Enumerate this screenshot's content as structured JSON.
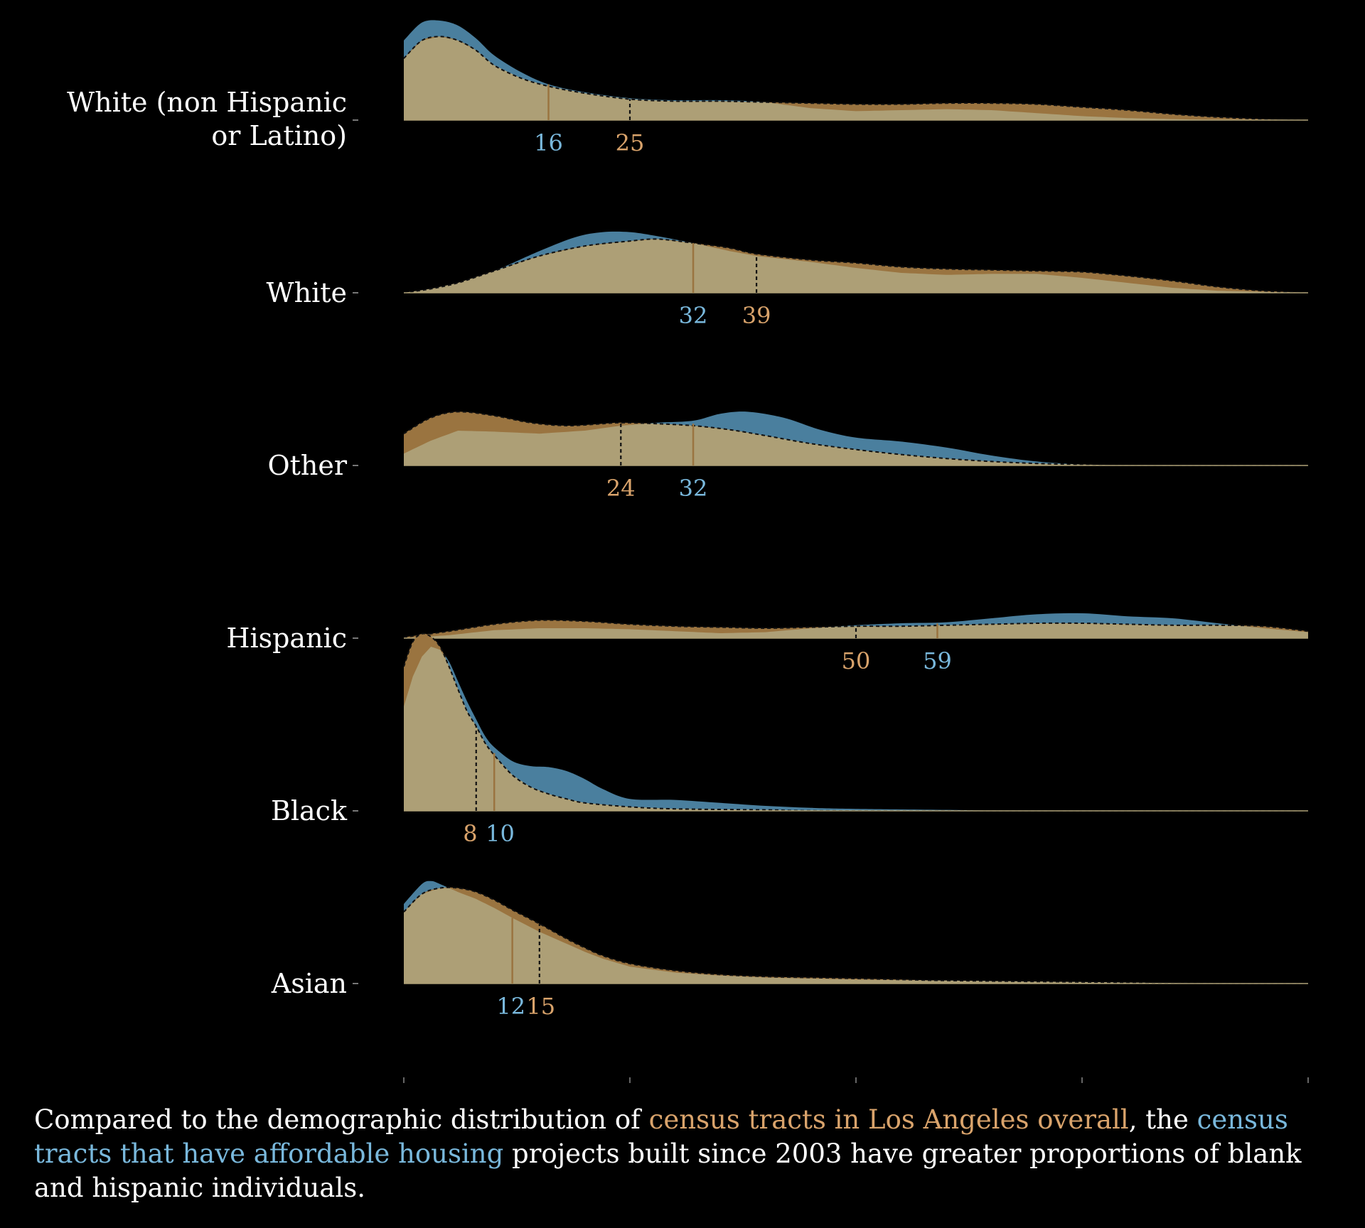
{
  "chart_data": {
    "type": "ridgeline-density",
    "xlim": [
      0,
      100
    ],
    "x_ticks": [
      0,
      25,
      50,
      75,
      100
    ],
    "series": [
      {
        "name": "census tracts in Los Angeles overall",
        "color": "#9a7440",
        "median_line": "dashed",
        "label_color": "#d9a36b"
      },
      {
        "name": "census tracts that have affordable housing",
        "color": "#4a7f9e",
        "median_line": "solid",
        "label_color": "#79b8dc"
      }
    ],
    "rows": [
      {
        "label": "White (non Hispanic or Latino)",
        "label_lines": [
          "White (non Hispanic",
          "or Latino)"
        ],
        "overall_median": 25,
        "affordable_median": 16,
        "overall_density": [
          [
            0,
            0.62
          ],
          [
            2,
            0.8
          ],
          [
            4,
            0.84
          ],
          [
            6,
            0.8
          ],
          [
            8,
            0.7
          ],
          [
            10,
            0.55
          ],
          [
            13,
            0.42
          ],
          [
            16,
            0.34
          ],
          [
            20,
            0.27
          ],
          [
            25,
            0.21
          ],
          [
            30,
            0.19
          ],
          [
            35,
            0.19
          ],
          [
            40,
            0.18
          ],
          [
            45,
            0.17
          ],
          [
            50,
            0.16
          ],
          [
            55,
            0.16
          ],
          [
            60,
            0.17
          ],
          [
            65,
            0.17
          ],
          [
            70,
            0.16
          ],
          [
            75,
            0.13
          ],
          [
            80,
            0.1
          ],
          [
            85,
            0.06
          ],
          [
            90,
            0.03
          ],
          [
            95,
            0.01
          ],
          [
            100,
            0.0
          ]
        ],
        "affordable_density": [
          [
            0,
            0.8
          ],
          [
            2,
            0.98
          ],
          [
            4,
            1.0
          ],
          [
            6,
            0.95
          ],
          [
            8,
            0.82
          ],
          [
            10,
            0.65
          ],
          [
            13,
            0.48
          ],
          [
            16,
            0.36
          ],
          [
            20,
            0.28
          ],
          [
            25,
            0.22
          ],
          [
            30,
            0.2
          ],
          [
            35,
            0.2
          ],
          [
            40,
            0.18
          ],
          [
            45,
            0.12
          ],
          [
            50,
            0.09
          ],
          [
            55,
            0.1
          ],
          [
            60,
            0.11
          ],
          [
            65,
            0.1
          ],
          [
            70,
            0.07
          ],
          [
            75,
            0.04
          ],
          [
            80,
            0.02
          ],
          [
            85,
            0.01
          ],
          [
            90,
            0.0
          ],
          [
            100,
            0.0
          ]
        ]
      },
      {
        "label": "White",
        "label_lines": [
          "White"
        ],
        "overall_median": 39,
        "affordable_median": 32,
        "overall_density": [
          [
            0,
            0.0
          ],
          [
            3,
            0.04
          ],
          [
            6,
            0.1
          ],
          [
            10,
            0.22
          ],
          [
            15,
            0.37
          ],
          [
            20,
            0.47
          ],
          [
            25,
            0.52
          ],
          [
            28,
            0.54
          ],
          [
            32,
            0.5
          ],
          [
            36,
            0.45
          ],
          [
            39,
            0.39
          ],
          [
            45,
            0.33
          ],
          [
            50,
            0.3
          ],
          [
            55,
            0.26
          ],
          [
            60,
            0.24
          ],
          [
            65,
            0.23
          ],
          [
            70,
            0.22
          ],
          [
            75,
            0.21
          ],
          [
            80,
            0.17
          ],
          [
            85,
            0.12
          ],
          [
            90,
            0.06
          ],
          [
            95,
            0.02
          ],
          [
            100,
            0.0
          ]
        ],
        "affordable_density": [
          [
            0,
            0.0
          ],
          [
            3,
            0.04
          ],
          [
            6,
            0.1
          ],
          [
            10,
            0.22
          ],
          [
            15,
            0.42
          ],
          [
            19,
            0.56
          ],
          [
            22,
            0.61
          ],
          [
            25,
            0.61
          ],
          [
            28,
            0.57
          ],
          [
            32,
            0.5
          ],
          [
            36,
            0.42
          ],
          [
            39,
            0.37
          ],
          [
            45,
            0.31
          ],
          [
            50,
            0.25
          ],
          [
            55,
            0.2
          ],
          [
            60,
            0.18
          ],
          [
            65,
            0.19
          ],
          [
            70,
            0.19
          ],
          [
            75,
            0.15
          ],
          [
            80,
            0.1
          ],
          [
            85,
            0.05
          ],
          [
            90,
            0.02
          ],
          [
            95,
            0.01
          ],
          [
            100,
            0.0
          ]
        ]
      },
      {
        "label": "Other",
        "label_lines": [
          "Other"
        ],
        "overall_median": 24,
        "affordable_median": 32,
        "overall_density": [
          [
            0,
            0.32
          ],
          [
            3,
            0.48
          ],
          [
            6,
            0.54
          ],
          [
            10,
            0.5
          ],
          [
            14,
            0.43
          ],
          [
            18,
            0.4
          ],
          [
            22,
            0.42
          ],
          [
            24,
            0.43
          ],
          [
            28,
            0.42
          ],
          [
            32,
            0.4
          ],
          [
            36,
            0.36
          ],
          [
            40,
            0.3
          ],
          [
            45,
            0.22
          ],
          [
            50,
            0.16
          ],
          [
            55,
            0.11
          ],
          [
            60,
            0.07
          ],
          [
            65,
            0.04
          ],
          [
            70,
            0.02
          ],
          [
            75,
            0.01
          ],
          [
            80,
            0.0
          ],
          [
            100,
            0.0
          ]
        ],
        "affordable_density": [
          [
            0,
            0.12
          ],
          [
            3,
            0.25
          ],
          [
            6,
            0.35
          ],
          [
            10,
            0.34
          ],
          [
            15,
            0.32
          ],
          [
            20,
            0.35
          ],
          [
            24,
            0.4
          ],
          [
            28,
            0.43
          ],
          [
            32,
            0.45
          ],
          [
            35,
            0.52
          ],
          [
            38,
            0.54
          ],
          [
            42,
            0.48
          ],
          [
            46,
            0.36
          ],
          [
            50,
            0.28
          ],
          [
            55,
            0.24
          ],
          [
            60,
            0.18
          ],
          [
            65,
            0.1
          ],
          [
            70,
            0.04
          ],
          [
            75,
            0.01
          ],
          [
            80,
            0.0
          ],
          [
            100,
            0.0
          ]
        ]
      },
      {
        "label": "Hispanic",
        "label_lines": [
          "Hispanic"
        ],
        "overall_median": 50,
        "affordable_median": 59,
        "overall_density": [
          [
            0,
            0.01
          ],
          [
            5,
            0.07
          ],
          [
            10,
            0.14
          ],
          [
            15,
            0.18
          ],
          [
            20,
            0.17
          ],
          [
            25,
            0.14
          ],
          [
            30,
            0.12
          ],
          [
            35,
            0.11
          ],
          [
            40,
            0.1
          ],
          [
            45,
            0.11
          ],
          [
            50,
            0.12
          ],
          [
            55,
            0.12
          ],
          [
            60,
            0.13
          ],
          [
            65,
            0.14
          ],
          [
            70,
            0.15
          ],
          [
            75,
            0.15
          ],
          [
            80,
            0.14
          ],
          [
            85,
            0.13
          ],
          [
            90,
            0.13
          ],
          [
            95,
            0.12
          ],
          [
            100,
            0.07
          ]
        ],
        "affordable_density": [
          [
            0,
            0.0
          ],
          [
            5,
            0.03
          ],
          [
            10,
            0.08
          ],
          [
            15,
            0.1
          ],
          [
            20,
            0.1
          ],
          [
            25,
            0.09
          ],
          [
            30,
            0.07
          ],
          [
            35,
            0.05
          ],
          [
            40,
            0.06
          ],
          [
            45,
            0.1
          ],
          [
            50,
            0.13
          ],
          [
            55,
            0.15
          ],
          [
            60,
            0.16
          ],
          [
            65,
            0.2
          ],
          [
            70,
            0.24
          ],
          [
            75,
            0.25
          ],
          [
            80,
            0.22
          ],
          [
            85,
            0.2
          ],
          [
            90,
            0.15
          ],
          [
            95,
            0.1
          ],
          [
            100,
            0.06
          ]
        ]
      },
      {
        "label": "Black",
        "label_lines": [
          "Black"
        ],
        "overall_median": 8,
        "affordable_median": 10,
        "overall_density": [
          [
            0,
            1.45
          ],
          [
            1,
            1.7
          ],
          [
            2,
            1.78
          ],
          [
            3,
            1.75
          ],
          [
            4,
            1.65
          ],
          [
            5,
            1.45
          ],
          [
            6,
            1.22
          ],
          [
            7,
            1.0
          ],
          [
            8,
            0.85
          ],
          [
            9,
            0.68
          ],
          [
            10,
            0.56
          ],
          [
            12,
            0.36
          ],
          [
            14,
            0.24
          ],
          [
            16,
            0.17
          ],
          [
            18,
            0.12
          ],
          [
            20,
            0.08
          ],
          [
            25,
            0.04
          ],
          [
            30,
            0.02
          ],
          [
            40,
            0.01
          ],
          [
            50,
            0.0
          ],
          [
            100,
            0.0
          ]
        ],
        "affordable_density": [
          [
            0,
            1.05
          ],
          [
            1,
            1.35
          ],
          [
            2,
            1.55
          ],
          [
            3,
            1.65
          ],
          [
            4,
            1.62
          ],
          [
            5,
            1.5
          ],
          [
            6,
            1.3
          ],
          [
            7,
            1.1
          ],
          [
            8,
            0.92
          ],
          [
            9,
            0.75
          ],
          [
            10,
            0.64
          ],
          [
            12,
            0.5
          ],
          [
            14,
            0.45
          ],
          [
            16,
            0.44
          ],
          [
            18,
            0.4
          ],
          [
            20,
            0.32
          ],
          [
            22,
            0.22
          ],
          [
            25,
            0.12
          ],
          [
            30,
            0.11
          ],
          [
            35,
            0.08
          ],
          [
            40,
            0.05
          ],
          [
            45,
            0.03
          ],
          [
            50,
            0.02
          ],
          [
            60,
            0.01
          ],
          [
            70,
            0.0
          ],
          [
            100,
            0.0
          ]
        ]
      },
      {
        "label": "Asian",
        "label_lines": [
          "Asian"
        ],
        "overall_median": 15,
        "affordable_median": 12,
        "overall_density": [
          [
            0,
            0.72
          ],
          [
            2,
            0.9
          ],
          [
            4,
            0.96
          ],
          [
            6,
            0.96
          ],
          [
            8,
            0.92
          ],
          [
            10,
            0.84
          ],
          [
            12,
            0.74
          ],
          [
            15,
            0.6
          ],
          [
            18,
            0.45
          ],
          [
            20,
            0.36
          ],
          [
            22,
            0.28
          ],
          [
            25,
            0.2
          ],
          [
            30,
            0.13
          ],
          [
            35,
            0.09
          ],
          [
            40,
            0.07
          ],
          [
            45,
            0.06
          ],
          [
            50,
            0.05
          ],
          [
            55,
            0.04
          ],
          [
            60,
            0.03
          ],
          [
            70,
            0.02
          ],
          [
            80,
            0.01
          ],
          [
            90,
            0.0
          ],
          [
            100,
            0.0
          ]
        ],
        "affordable_density": [
          [
            0,
            0.8
          ],
          [
            2,
            1.0
          ],
          [
            3,
            1.03
          ],
          [
            4,
            1.0
          ],
          [
            6,
            0.92
          ],
          [
            8,
            0.85
          ],
          [
            10,
            0.76
          ],
          [
            12,
            0.66
          ],
          [
            15,
            0.52
          ],
          [
            18,
            0.4
          ],
          [
            20,
            0.32
          ],
          [
            22,
            0.25
          ],
          [
            25,
            0.17
          ],
          [
            30,
            0.11
          ],
          [
            35,
            0.08
          ],
          [
            40,
            0.06
          ],
          [
            45,
            0.05
          ],
          [
            50,
            0.04
          ],
          [
            60,
            0.03
          ],
          [
            70,
            0.02
          ],
          [
            80,
            0.01
          ],
          [
            90,
            0.0
          ],
          [
            100,
            0.0
          ]
        ]
      }
    ]
  },
  "caption": {
    "prefix": "Compared to the demographic distribution of ",
    "overall_link": "census tracts in Los Angeles overall",
    "middle": ", the ",
    "affordable_link": "census tracts that have affordable housing",
    "suffix": " projects built since 2003 have greater proportions of blank and hispanic individuals."
  }
}
